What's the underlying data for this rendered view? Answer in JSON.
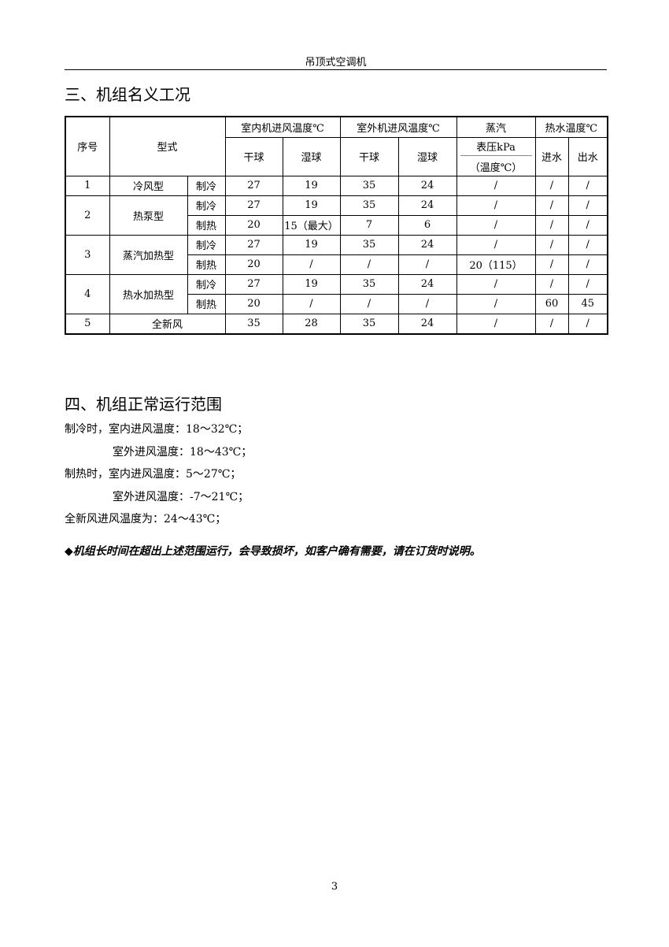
{
  "running_header": "吊顶式空调机",
  "section3": {
    "title": "三、机组名义工况"
  },
  "table": {
    "headers": {
      "no": "序号",
      "type": "型式",
      "indoor": "室内机进风温度℃",
      "outdoor": "室外机进风温度℃",
      "steam": "蒸汽",
      "hotwater": "热水温度℃",
      "dry": "干球",
      "wet": "湿球",
      "pressure": "表压kPa",
      "pressure_temp": "（温度℃）",
      "water_in": "进水",
      "water_out": "出水"
    },
    "groups": [
      {
        "no": "1",
        "type": "冷风型",
        "modes": [
          {
            "mode": "制冷",
            "values": [
              "27",
              "19",
              "35",
              "24",
              "/",
              "/",
              "/"
            ]
          }
        ]
      },
      {
        "no": "2",
        "type": "热泵型",
        "modes": [
          {
            "mode": "制冷",
            "values": [
              "27",
              "19",
              "35",
              "24",
              "/",
              "/",
              "/"
            ]
          },
          {
            "mode": "制热",
            "values": [
              "20",
              "15（最大）",
              "7",
              "6",
              "/",
              "/",
              "/"
            ]
          }
        ]
      },
      {
        "no": "3",
        "type": "蒸汽加热型",
        "modes": [
          {
            "mode": "制冷",
            "values": [
              "27",
              "19",
              "35",
              "24",
              "/",
              "/",
              "/"
            ]
          },
          {
            "mode": "制热",
            "values": [
              "20",
              "/",
              "/",
              "/",
              "20（115）",
              "/",
              "/"
            ]
          }
        ]
      },
      {
        "no": "4",
        "type": "热水加热型",
        "modes": [
          {
            "mode": "制冷",
            "values": [
              "27",
              "19",
              "35",
              "24",
              "/",
              "/",
              "/"
            ]
          },
          {
            "mode": "制热",
            "values": [
              "20",
              "/",
              "/",
              "/",
              "/",
              "60",
              "45"
            ]
          }
        ]
      },
      {
        "no": "5",
        "type": "全新风",
        "modes": [
          {
            "mode": "",
            "values": [
              "35",
              "28",
              "35",
              "24",
              "/",
              "/",
              "/"
            ]
          }
        ]
      }
    ]
  },
  "section4": {
    "title": "四、机组正常运行范围",
    "lines": [
      "制冷时，室内进风温度：18～32℃；",
      "室外进风温度：18～43℃；",
      "制热时，室内进风温度：5～27℃；",
      "室外进风温度：-7～21℃；",
      "全新风进风温度为：24～43℃；"
    ],
    "note": "◆机组长时间在超出上述范围运行，会导致损坏，如客户确有需要，请在订货时说明。"
  },
  "page_number": "3"
}
